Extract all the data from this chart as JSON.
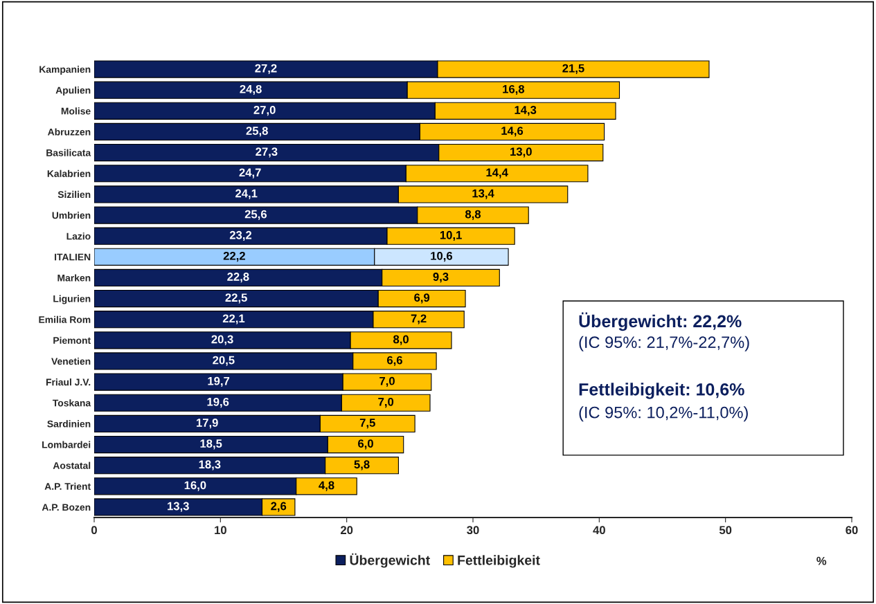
{
  "chart_data": {
    "type": "bar",
    "orientation": "horizontal",
    "stacked": true,
    "categories": [
      "Kampanien",
      "Apulien",
      "Molise",
      "Abruzzen",
      "Basilicata",
      "Kalabrien",
      "Sizilien",
      "Umbrien",
      "Lazio",
      "ITALIEN",
      "Marken",
      "Ligurien",
      "Emilia Rom",
      "Piemont",
      "Venetien",
      "Friaul J.V.",
      "Toskana",
      "Sardinien",
      "Lombardei",
      "Aostatal",
      "A.P. Trient",
      "A.P. Bozen"
    ],
    "series": [
      {
        "name": "Übergewicht",
        "color": "#0c1f5e",
        "colors": [
          "#0c1f5e",
          "#0c1f5e",
          "#0c1f5e",
          "#0c1f5e",
          "#0c1f5e",
          "#0c1f5e",
          "#0c1f5e",
          "#0c1f5e",
          "#0c1f5e",
          "#99ccff",
          "#0c1f5e",
          "#0c1f5e",
          "#0c1f5e",
          "#0c1f5e",
          "#0c1f5e",
          "#0c1f5e",
          "#0c1f5e",
          "#0c1f5e",
          "#0c1f5e",
          "#0c1f5e",
          "#0c1f5e",
          "#0c1f5e"
        ],
        "values": [
          27.2,
          24.8,
          27.0,
          25.8,
          27.3,
          24.7,
          24.1,
          25.6,
          23.2,
          22.2,
          22.8,
          22.5,
          22.1,
          20.3,
          20.5,
          19.7,
          19.6,
          17.9,
          18.5,
          18.3,
          16.0,
          13.3
        ],
        "value_labels": [
          "27,2",
          "24,8",
          "27,0",
          "25,8",
          "27,3",
          "24,7",
          "24,1",
          "25,6",
          "23,2",
          "22,2",
          "22,8",
          "22,5",
          "22,1",
          "20,3",
          "20,5",
          "19,7",
          "19,6",
          "17,9",
          "18,5",
          "18,3",
          "16,0",
          "13,3"
        ]
      },
      {
        "name": "Fettleibigkeit",
        "color": "#ffc000",
        "colors": [
          "#ffc000",
          "#ffc000",
          "#ffc000",
          "#ffc000",
          "#ffc000",
          "#ffc000",
          "#ffc000",
          "#ffc000",
          "#ffc000",
          "#cce6ff",
          "#ffc000",
          "#ffc000",
          "#ffc000",
          "#ffc000",
          "#ffc000",
          "#ffc000",
          "#ffc000",
          "#ffc000",
          "#ffc000",
          "#ffc000",
          "#ffc000",
          "#ffc000"
        ],
        "values": [
          21.5,
          16.8,
          14.3,
          14.6,
          13.0,
          14.4,
          13.4,
          8.8,
          10.1,
          10.6,
          9.3,
          6.9,
          7.2,
          8.0,
          6.6,
          7.0,
          7.0,
          7.5,
          6.0,
          5.8,
          4.8,
          2.6
        ],
        "value_labels": [
          "21,5",
          "16,8",
          "14,3",
          "14,6",
          "13,0",
          "14,4",
          "13,4",
          "8,8",
          "10,1",
          "10,6",
          "9,3",
          "6,9",
          "7,2",
          "8,0",
          "6,6",
          "7,0",
          "7,0",
          "7,5",
          "6,0",
          "5,8",
          "4,8",
          "2,6"
        ]
      }
    ],
    "xlabel": "%",
    "xlim": [
      0,
      60
    ],
    "xticks": [
      0,
      10,
      20,
      30,
      40,
      50,
      60
    ],
    "grid": false,
    "legend": "bottom",
    "annotations": [
      "Übergewicht: 22,2%",
      "(IC 95%: 21,7%-22,7%)",
      "Fettleibigkeit: 10,6%",
      "(IC 95%: 10,2%-11,0%)"
    ]
  }
}
